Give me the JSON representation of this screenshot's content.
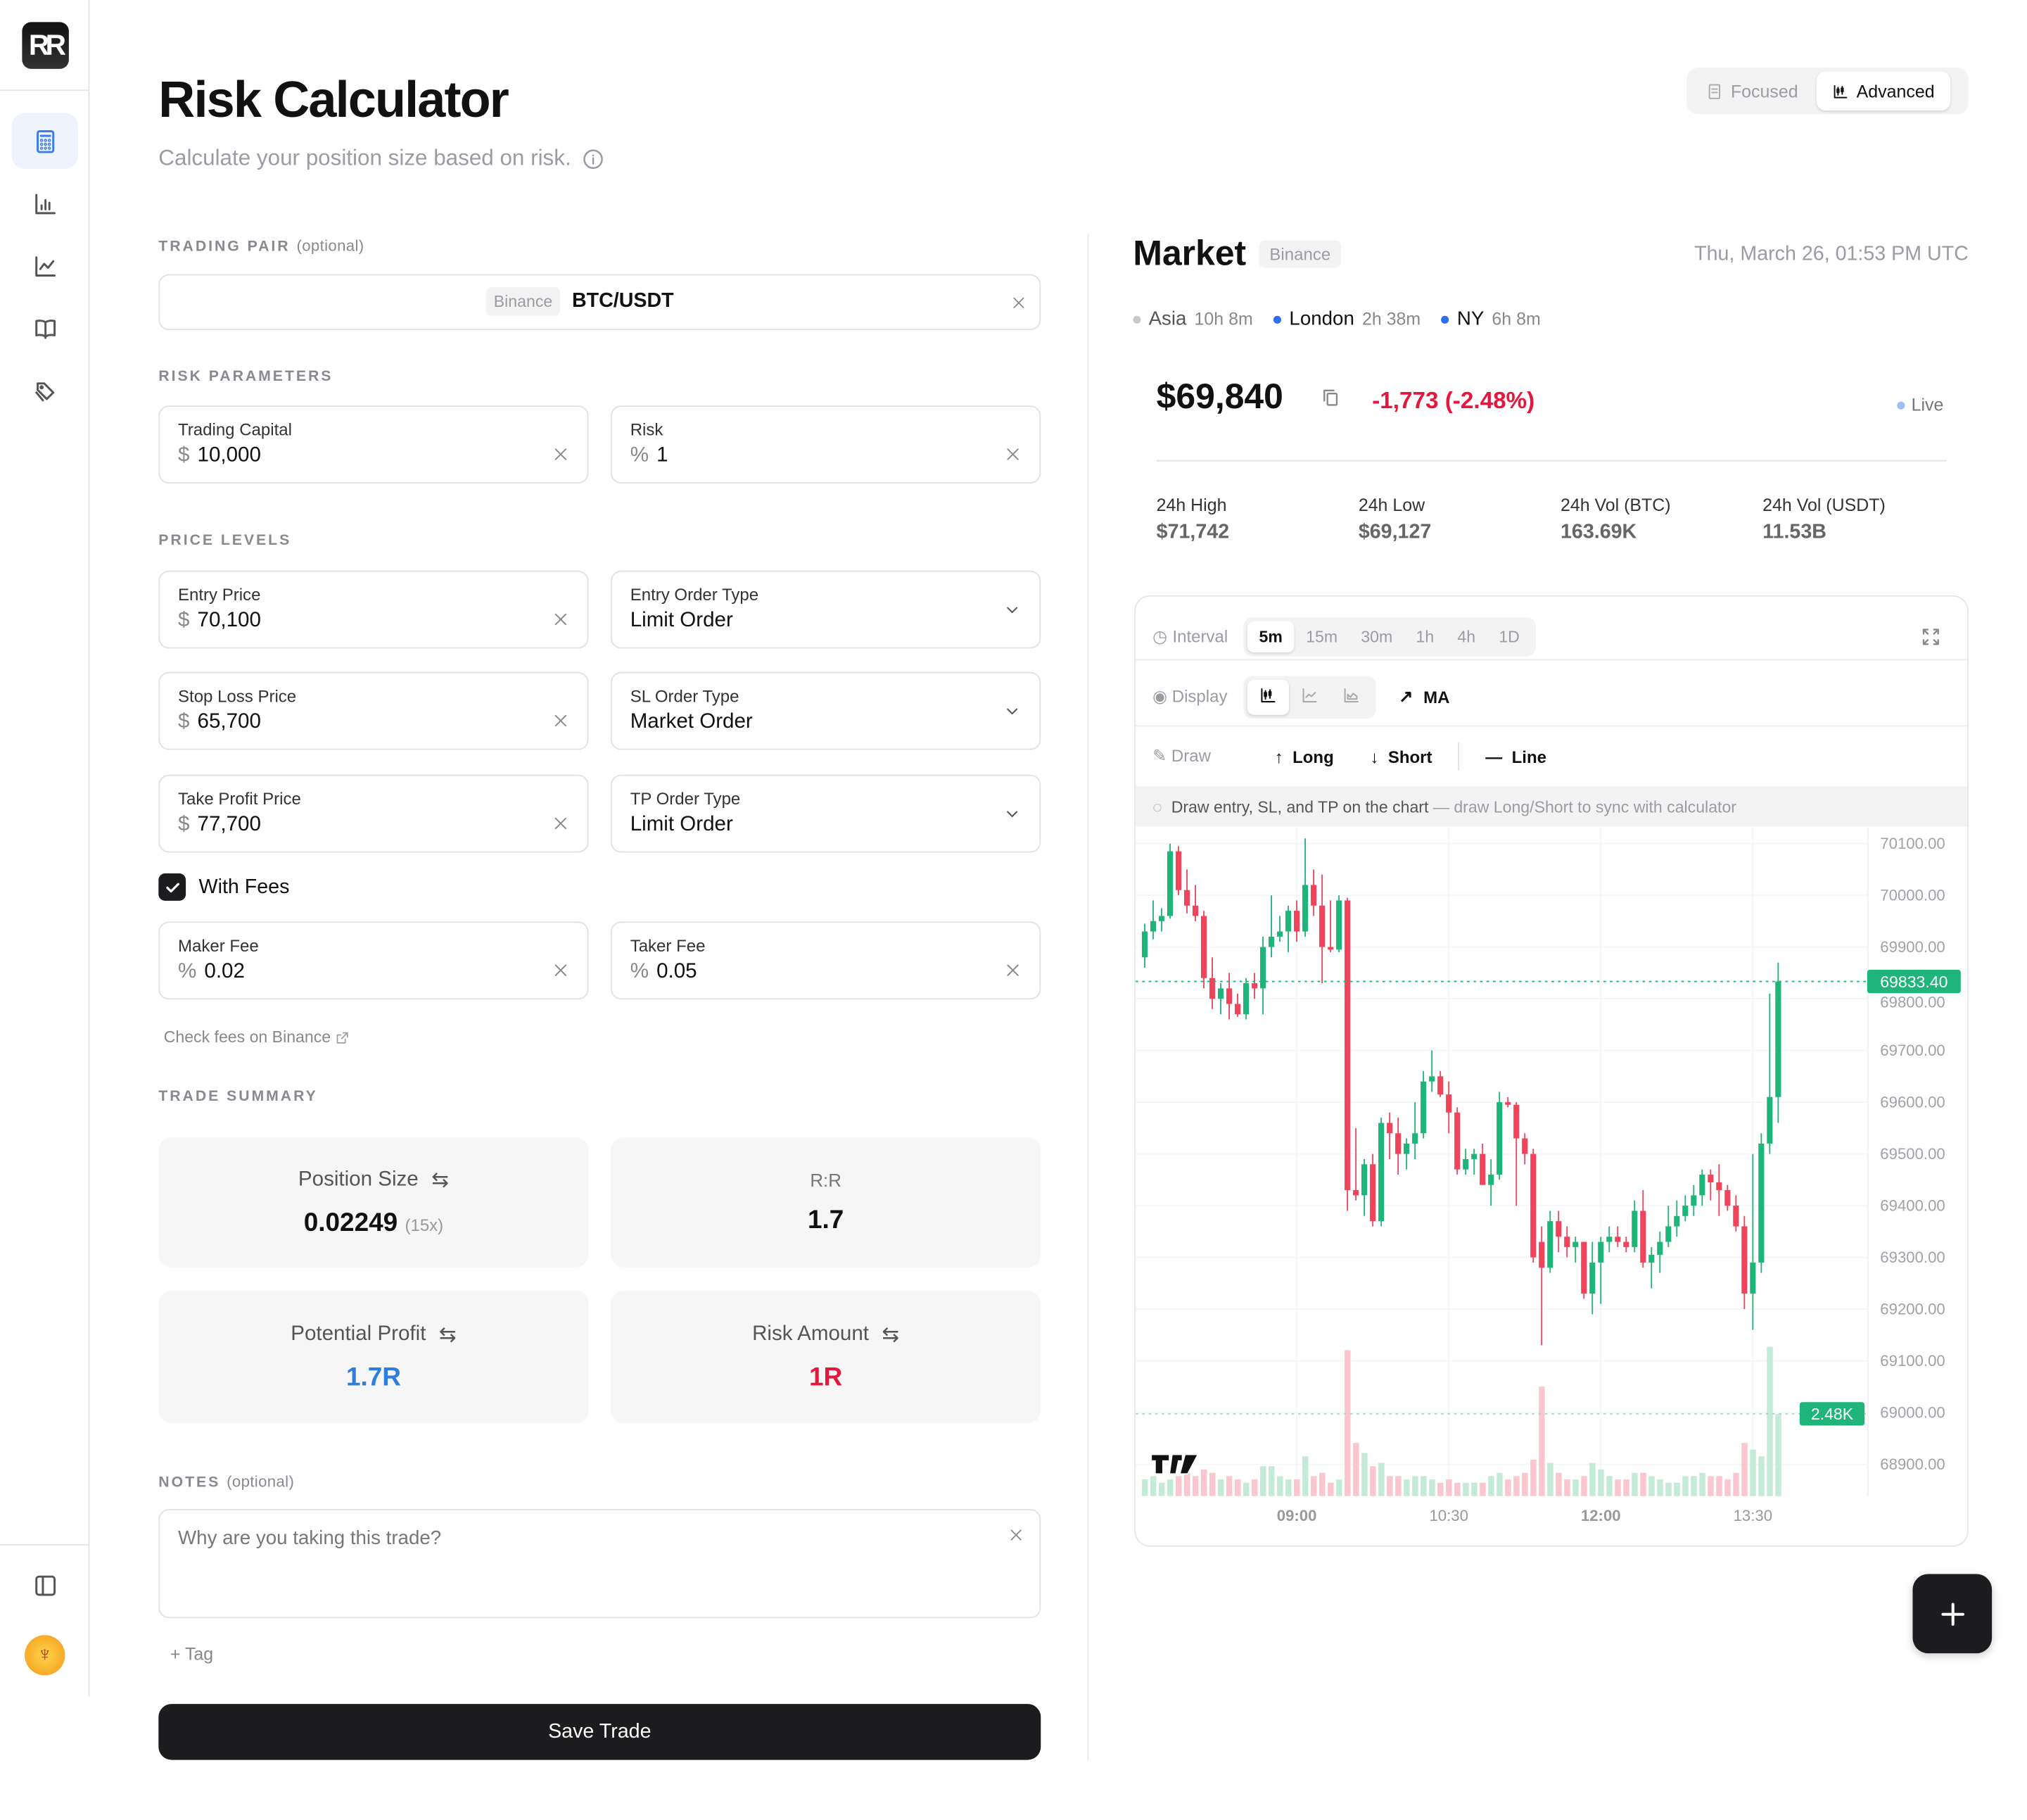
{
  "app": {
    "logo": "RR",
    "title": "Risk Calculator",
    "subtitle": "Calculate your position size based on risk."
  },
  "sidebar": {
    "items": [
      {
        "icon": "calculator-icon",
        "active": true
      },
      {
        "icon": "bar-chart-icon"
      },
      {
        "icon": "line-chart-icon"
      },
      {
        "icon": "book-icon"
      },
      {
        "icon": "tag-icon"
      }
    ],
    "bottom": [
      "panel-toggle-icon",
      "avatar"
    ]
  },
  "mode_toggle": {
    "focused": "Focused",
    "advanced": "Advanced",
    "selected": "Advanced"
  },
  "trading_pair": {
    "label": "TRADING PAIR",
    "optional": "(optional)",
    "exchange": "Binance",
    "pair": "BTC/USDT"
  },
  "risk_parameters": {
    "label": "RISK PARAMETERS",
    "capital": {
      "label": "Trading Capital",
      "prefix": "$",
      "value": "10,000"
    },
    "risk": {
      "label": "Risk",
      "prefix": "%",
      "value": "1"
    }
  },
  "price_levels": {
    "label": "PRICE LEVELS",
    "entry": {
      "label": "Entry Price",
      "prefix": "$",
      "value": "70,100"
    },
    "entry_type": {
      "label": "Entry Order Type",
      "value": "Limit Order"
    },
    "sl": {
      "label": "Stop Loss Price",
      "prefix": "$",
      "value": "65,700"
    },
    "sl_type": {
      "label": "SL Order Type",
      "value": "Market Order"
    },
    "tp": {
      "label": "Take Profit Price",
      "prefix": "$",
      "value": "77,700"
    },
    "tp_type": {
      "label": "TP Order Type",
      "value": "Limit Order"
    }
  },
  "fees": {
    "with_fees_label": "With Fees",
    "checked": true,
    "maker": {
      "label": "Maker Fee",
      "prefix": "%",
      "value": "0.02"
    },
    "taker": {
      "label": "Taker Fee",
      "prefix": "%",
      "value": "0.05"
    },
    "check_link": "Check fees on Binance"
  },
  "summary": {
    "label": "TRADE SUMMARY",
    "position_size": {
      "label": "Position Size",
      "value": "0.02249",
      "leverage": "(15x)"
    },
    "rr": {
      "label": "R:R",
      "value": "1.7"
    },
    "profit": {
      "label": "Potential Profit",
      "value": "1.7R",
      "color": "#2f7de1"
    },
    "risk_amount": {
      "label": "Risk Amount",
      "value": "1R",
      "color": "#e5173f"
    }
  },
  "notes": {
    "label": "NOTES",
    "optional": "(optional)",
    "placeholder": "Why are you taking this trade?",
    "tag": "Tag"
  },
  "save_label": "Save Trade",
  "market": {
    "title": "Market",
    "exchange": "Binance",
    "datetime": "Thu, March 26, 01:53 PM UTC",
    "sessions": [
      {
        "name": "Asia",
        "time": "10h 8m",
        "color": "#c8c8cc"
      },
      {
        "name": "London",
        "time": "2h 38m",
        "color": "#2f6fef"
      },
      {
        "name": "NY",
        "time": "6h 8m",
        "color": "#2f6fef"
      }
    ],
    "price": "$69,840",
    "change": "-1,773 (-2.48%)",
    "change_color": "#e5173f",
    "live": "Live",
    "stats": [
      {
        "label": "24h High",
        "value": "$71,742"
      },
      {
        "label": "24h Low",
        "value": "$69,127"
      },
      {
        "label": "24h Vol (BTC)",
        "value": "163.69K"
      },
      {
        "label": "24h Vol (USDT)",
        "value": "11.53B"
      }
    ]
  },
  "chart_controls": {
    "interval_label": "Interval",
    "intervals": [
      "5m",
      "15m",
      "30m",
      "1h",
      "4h",
      "1D"
    ],
    "selected_interval": "5m",
    "display_label": "Display",
    "display_modes": [
      "candlestick-icon",
      "line-chart-icon",
      "area-chart-icon"
    ],
    "ma": "MA",
    "draw_label": "Draw",
    "long": "Long",
    "short": "Short",
    "line": "Line",
    "hint": "Draw entry, SL, and TP on the chart",
    "hint_sub": "— draw Long/Short to sync with calculator"
  },
  "chart_data": {
    "type": "candlestick",
    "up_color": "#1fb57a",
    "down_color": "#f0445c",
    "y_ticks": [
      "70100.00",
      "70000.00",
      "69900.00",
      "69800.00",
      "69700.00",
      "69600.00",
      "69500.00",
      "69400.00",
      "69300.00",
      "69200.00",
      "69100.00",
      "69000.00",
      "68900.00"
    ],
    "x_ticks": [
      {
        "label": "09:00",
        "bold": true
      },
      {
        "label": "10:30",
        "bold": false
      },
      {
        "label": "12:00",
        "bold": true
      },
      {
        "label": "13:30",
        "bold": false
      }
    ],
    "last_price_label": "69833.40",
    "last_volume_label": "2.48K",
    "ylim": [
      68880,
      70120
    ],
    "candles": [
      [
        "07:30",
        69880,
        69945,
        69860,
        69930,
        0.5
      ],
      [
        "07:35",
        69930,
        69990,
        69915,
        69950,
        0.6
      ],
      [
        "07:40",
        69950,
        69975,
        69930,
        69960,
        0.4
      ],
      [
        "07:45",
        69960,
        70100,
        69955,
        70085,
        0.5
      ],
      [
        "07:50",
        70085,
        70095,
        70000,
        70010,
        0.6
      ],
      [
        "07:55",
        70010,
        70050,
        69965,
        69980,
        0.7
      ],
      [
        "08:00",
        69980,
        70020,
        69950,
        69960,
        0.6
      ],
      [
        "08:05",
        69960,
        69970,
        69820,
        69840,
        0.8
      ],
      [
        "08:10",
        69840,
        69880,
        69780,
        69800,
        0.7
      ],
      [
        "08:15",
        69800,
        69830,
        69770,
        69820,
        0.5
      ],
      [
        "08:20",
        69820,
        69850,
        69760,
        69790,
        0.6
      ],
      [
        "08:25",
        69790,
        69810,
        69765,
        69770,
        0.5
      ],
      [
        "08:30",
        69770,
        69840,
        69760,
        69830,
        0.4
      ],
      [
        "08:35",
        69830,
        69850,
        69800,
        69820,
        0.5
      ],
      [
        "08:40",
        69820,
        69920,
        69770,
        69900,
        0.9
      ],
      [
        "08:45",
        69900,
        70000,
        69880,
        69920,
        0.9
      ],
      [
        "08:50",
        69920,
        69960,
        69910,
        69930,
        0.6
      ],
      [
        "08:55",
        69930,
        69980,
        69890,
        69970,
        0.5
      ],
      [
        "09:00",
        69970,
        69990,
        69910,
        69930,
        0.5
      ],
      [
        "09:05",
        69930,
        70110,
        69920,
        70020,
        1.2
      ],
      [
        "09:10",
        70020,
        70050,
        69960,
        69980,
        0.6
      ],
      [
        "09:15",
        69980,
        70040,
        69830,
        69900,
        0.7
      ],
      [
        "09:20",
        69900,
        69990,
        69890,
        69895,
        0.4
      ],
      [
        "09:25",
        69895,
        70000,
        69890,
        69990,
        0.5
      ],
      [
        "09:30",
        69990,
        69995,
        69390,
        69430,
        4.4
      ],
      [
        "09:35",
        69430,
        69550,
        69410,
        69420,
        1.6
      ],
      [
        "09:40",
        69420,
        69490,
        69380,
        69480,
        1.3
      ],
      [
        "09:45",
        69480,
        69500,
        69360,
        69370,
        0.9
      ],
      [
        "09:50",
        69370,
        69570,
        69360,
        69560,
        1.0
      ],
      [
        "09:55",
        69560,
        69580,
        69490,
        69540,
        0.6
      ],
      [
        "10:00",
        69540,
        69570,
        69460,
        69500,
        0.6
      ],
      [
        "10:05",
        69500,
        69530,
        69470,
        69520,
        0.5
      ],
      [
        "10:10",
        69520,
        69600,
        69490,
        69540,
        0.6
      ],
      [
        "10:15",
        69540,
        69660,
        69530,
        69640,
        0.6
      ],
      [
        "10:20",
        69640,
        69700,
        69620,
        69650,
        0.5
      ],
      [
        "10:25",
        69650,
        69660,
        69610,
        69615,
        0.4
      ],
      [
        "10:30",
        69615,
        69640,
        69540,
        69580,
        0.5
      ],
      [
        "10:35",
        69580,
        69590,
        69460,
        69470,
        0.4
      ],
      [
        "10:40",
        69470,
        69510,
        69460,
        69490,
        0.4
      ],
      [
        "10:45",
        69490,
        69510,
        69460,
        69500,
        0.4
      ],
      [
        "10:50",
        69500,
        69520,
        69440,
        69440,
        0.4
      ],
      [
        "10:55",
        69440,
        69490,
        69400,
        69460,
        0.6
      ],
      [
        "11:00",
        69460,
        69620,
        69450,
        69600,
        0.7
      ],
      [
        "11:05",
        69600,
        69610,
        69590,
        69595,
        0.5
      ],
      [
        "11:10",
        69595,
        69600,
        69400,
        69530,
        0.6
      ],
      [
        "11:15",
        69530,
        69540,
        69480,
        69500,
        0.7
      ],
      [
        "11:20",
        69500,
        69510,
        69290,
        69300,
        1.1
      ],
      [
        "11:25",
        69330,
        69360,
        69130,
        69280,
        3.3
      ],
      [
        "11:30",
        69280,
        69390,
        69270,
        69370,
        1.0
      ],
      [
        "11:35",
        69370,
        69390,
        69310,
        69340,
        0.7
      ],
      [
        "11:40",
        69340,
        69360,
        69300,
        69320,
        0.5
      ],
      [
        "11:45",
        69320,
        69340,
        69290,
        69330,
        0.5
      ],
      [
        "11:50",
        69330,
        69330,
        69220,
        69230,
        0.6
      ],
      [
        "11:55",
        69230,
        69330,
        69190,
        69290,
        1.0
      ],
      [
        "12:00",
        69290,
        69340,
        69210,
        69330,
        0.8
      ],
      [
        "12:05",
        69330,
        69360,
        69310,
        69340,
        0.6
      ],
      [
        "12:10",
        69340,
        69360,
        69320,
        69330,
        0.5
      ],
      [
        "12:15",
        69330,
        69340,
        69310,
        69320,
        0.5
      ],
      [
        "12:20",
        69320,
        69410,
        69310,
        69390,
        0.7
      ],
      [
        "12:25",
        69390,
        69430,
        69280,
        69290,
        0.7
      ],
      [
        "12:30",
        69290,
        69320,
        69240,
        69305,
        0.6
      ],
      [
        "12:35",
        69305,
        69350,
        69270,
        69330,
        0.5
      ],
      [
        "12:40",
        69330,
        69400,
        69320,
        69360,
        0.4
      ],
      [
        "12:45",
        69360,
        69410,
        69340,
        69380,
        0.4
      ],
      [
        "12:50",
        69380,
        69420,
        69370,
        69400,
        0.6
      ],
      [
        "12:55",
        69400,
        69440,
        69380,
        69420,
        0.6
      ],
      [
        "13:00",
        69420,
        69470,
        69400,
        69460,
        0.7
      ],
      [
        "13:05",
        69460,
        69470,
        69410,
        69445,
        0.6
      ],
      [
        "13:10",
        69445,
        69480,
        69380,
        69430,
        0.6
      ],
      [
        "13:15",
        69430,
        69440,
        69390,
        69400,
        0.5
      ],
      [
        "13:20",
        69400,
        69420,
        69350,
        69360,
        0.7
      ],
      [
        "13:25",
        69360,
        69380,
        69200,
        69230,
        1.6
      ],
      [
        "13:30",
        69230,
        69500,
        69160,
        69290,
        1.4
      ],
      [
        "13:35",
        69290,
        69540,
        69270,
        69520,
        1.2
      ],
      [
        "13:40",
        69520,
        69810,
        69500,
        69610,
        4.5
      ],
      [
        "13:45",
        69610,
        69870,
        69560,
        69833.4,
        2.48
      ]
    ]
  }
}
